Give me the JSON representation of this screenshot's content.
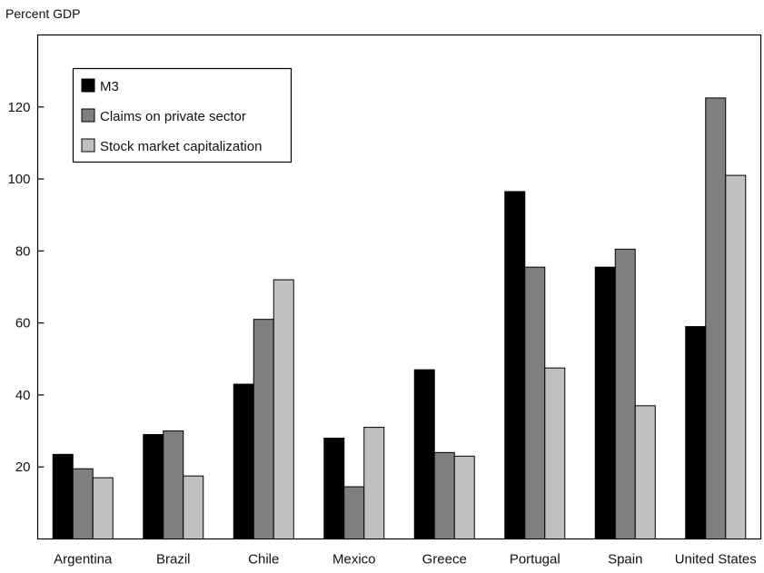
{
  "chart_data": {
    "type": "bar",
    "ylabel": "Percent GDP",
    "categories": [
      "Argentina",
      "Brazil",
      "Chile",
      "Mexico",
      "Greece",
      "Portugal",
      "Spain",
      "United States"
    ],
    "series": [
      {
        "name": "M3",
        "color": "#000000",
        "values": [
          23.5,
          29,
          43,
          28,
          47,
          96.5,
          75.5,
          59
        ]
      },
      {
        "name": "Claims on private sector",
        "color": "#7f7f7f",
        "values": [
          19.5,
          30,
          61,
          14.5,
          24,
          75.5,
          80.5,
          122.5
        ]
      },
      {
        "name": "Stock market capitalization",
        "color": "#c0c0c0",
        "values": [
          17,
          17.5,
          72,
          31,
          23,
          47.5,
          37,
          101
        ]
      }
    ],
    "ylim": [
      0,
      140
    ],
    "yticks": [
      20,
      40,
      60,
      80,
      100,
      120
    ],
    "grid": false,
    "legend_position": "top-left"
  }
}
